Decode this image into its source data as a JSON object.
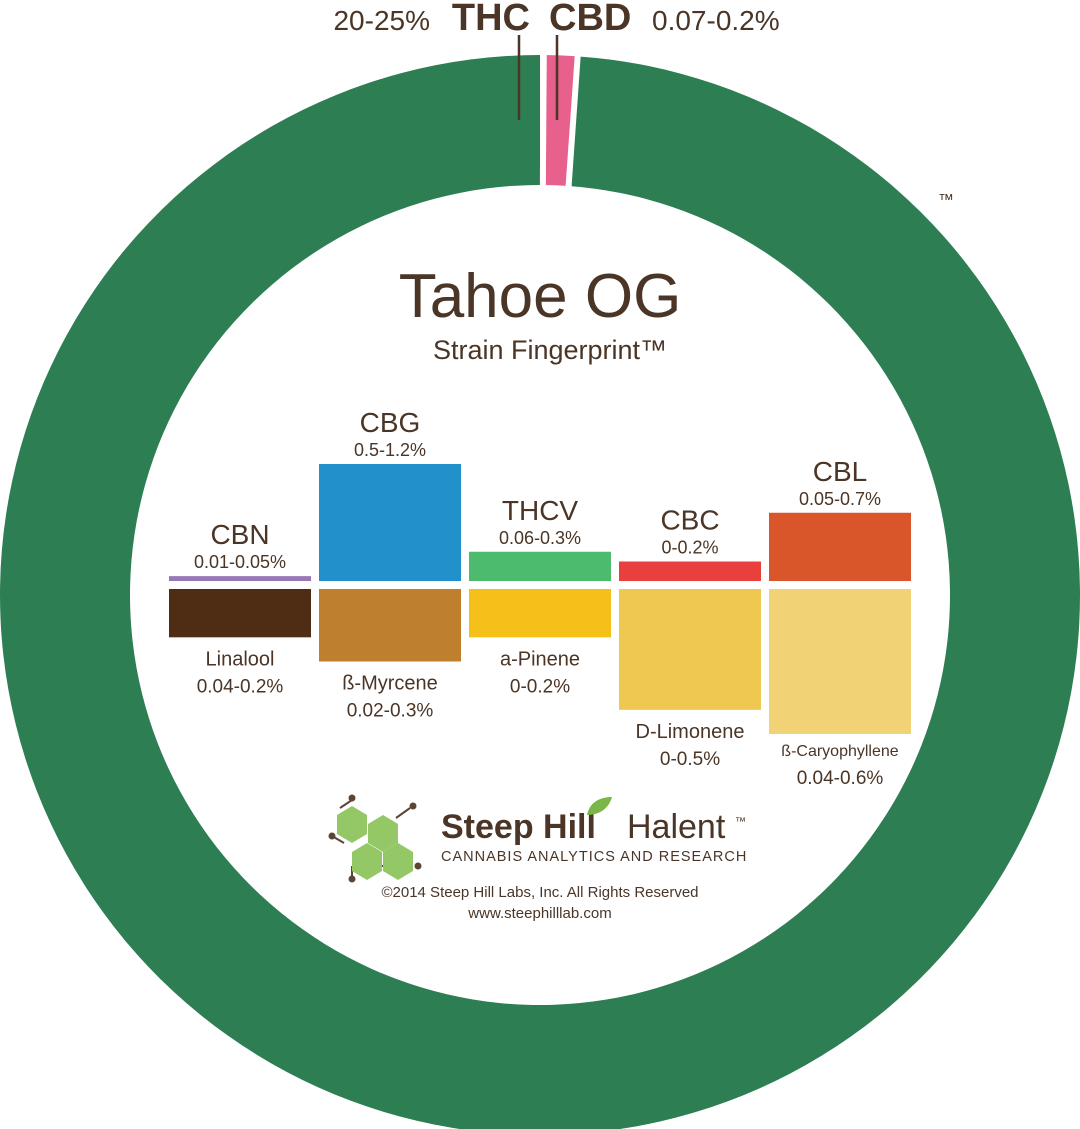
{
  "trademark": "™",
  "title": "Tahoe OG",
  "subtitle": "Strain Fingerprint™",
  "ring": {
    "thc": {
      "label": "THC",
      "range": "20-25%"
    },
    "cbd": {
      "label": "CBD",
      "range": "0.07-0.2%"
    }
  },
  "colors": {
    "text": "#4a3526",
    "thc_ring": "#2d7e53",
    "cbd_ring": "#e8608c",
    "divider": "#ffffff"
  },
  "chart_data": {
    "type": "bar",
    "cannabinoids": [
      {
        "label": "CBN",
        "range": "0.01-0.05%",
        "min": 0.01,
        "max": 0.05,
        "color": "#9a78b8"
      },
      {
        "label": "CBG",
        "range": "0.5-1.2%",
        "min": 0.5,
        "max": 1.2,
        "color": "#2291cb"
      },
      {
        "label": "THCV",
        "range": "0.06-0.3%",
        "min": 0.06,
        "max": 0.3,
        "color": "#4dbb6d"
      },
      {
        "label": "CBC",
        "range": "0-0.2%",
        "min": 0,
        "max": 0.2,
        "color": "#e9403e"
      },
      {
        "label": "CBL",
        "range": "0.05-0.7%",
        "min": 0.05,
        "max": 0.7,
        "color": "#d8562a"
      }
    ],
    "terpenes": [
      {
        "label": "Linalool",
        "range": "0.04-0.2%",
        "min": 0.04,
        "max": 0.2,
        "color": "#4f2d15"
      },
      {
        "label": "ß-Myrcene",
        "range": "0.02-0.3%",
        "min": 0.02,
        "max": 0.3,
        "color": "#be802e"
      },
      {
        "label": "a-Pinene",
        "range": "0-0.2%",
        "min": 0,
        "max": 0.2,
        "color": "#f5c01a"
      },
      {
        "label": "D-Limonene",
        "range": "0-0.5%",
        "min": 0,
        "max": 0.5,
        "color": "#eec850"
      },
      {
        "label": "ß-Caryophyllene",
        "range": "0.04-0.6%",
        "min": 0.04,
        "max": 0.6,
        "color": "#f1d274"
      }
    ]
  },
  "logo": {
    "brand_bold": "Steep Hill",
    "brand_light": "Halent",
    "brand_tm": "™",
    "tagline": "CANNABIS ANALYTICS AND RESEARCH",
    "hex_color": "#94c867",
    "leaf_color": "#7ab648",
    "line_color": "#5b4636"
  },
  "footer": {
    "copyright": "©2014 Steep Hill Labs, Inc. All Rights Reserved",
    "url": "www.steephilllab.com"
  }
}
